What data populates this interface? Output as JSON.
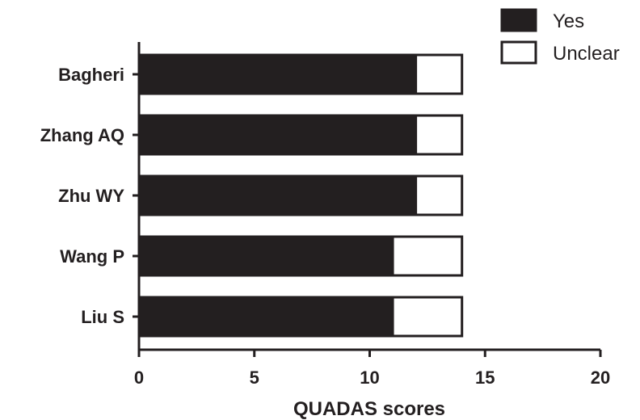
{
  "chart_data": {
    "type": "bar",
    "orientation": "horizontal",
    "stacked": true,
    "categories": [
      "Bagheri",
      "Zhang AQ",
      "Zhu WY",
      "Wang P",
      "Liu S"
    ],
    "series": [
      {
        "name": "Yes",
        "values": [
          12,
          12,
          12,
          11,
          11
        ],
        "color": "#231f20"
      },
      {
        "name": "Unclear",
        "values": [
          2,
          2,
          2,
          3,
          3
        ],
        "color": "#ffffff"
      }
    ],
    "xlabel": "QUADAS scores",
    "ylabel": "",
    "xlim": [
      0,
      20
    ],
    "xticks": [
      "0",
      "5",
      "10",
      "15",
      "20"
    ],
    "grid": false,
    "legend_position": "top-right"
  },
  "colors": {
    "ink": "#231f20",
    "background": "#ffffff"
  }
}
